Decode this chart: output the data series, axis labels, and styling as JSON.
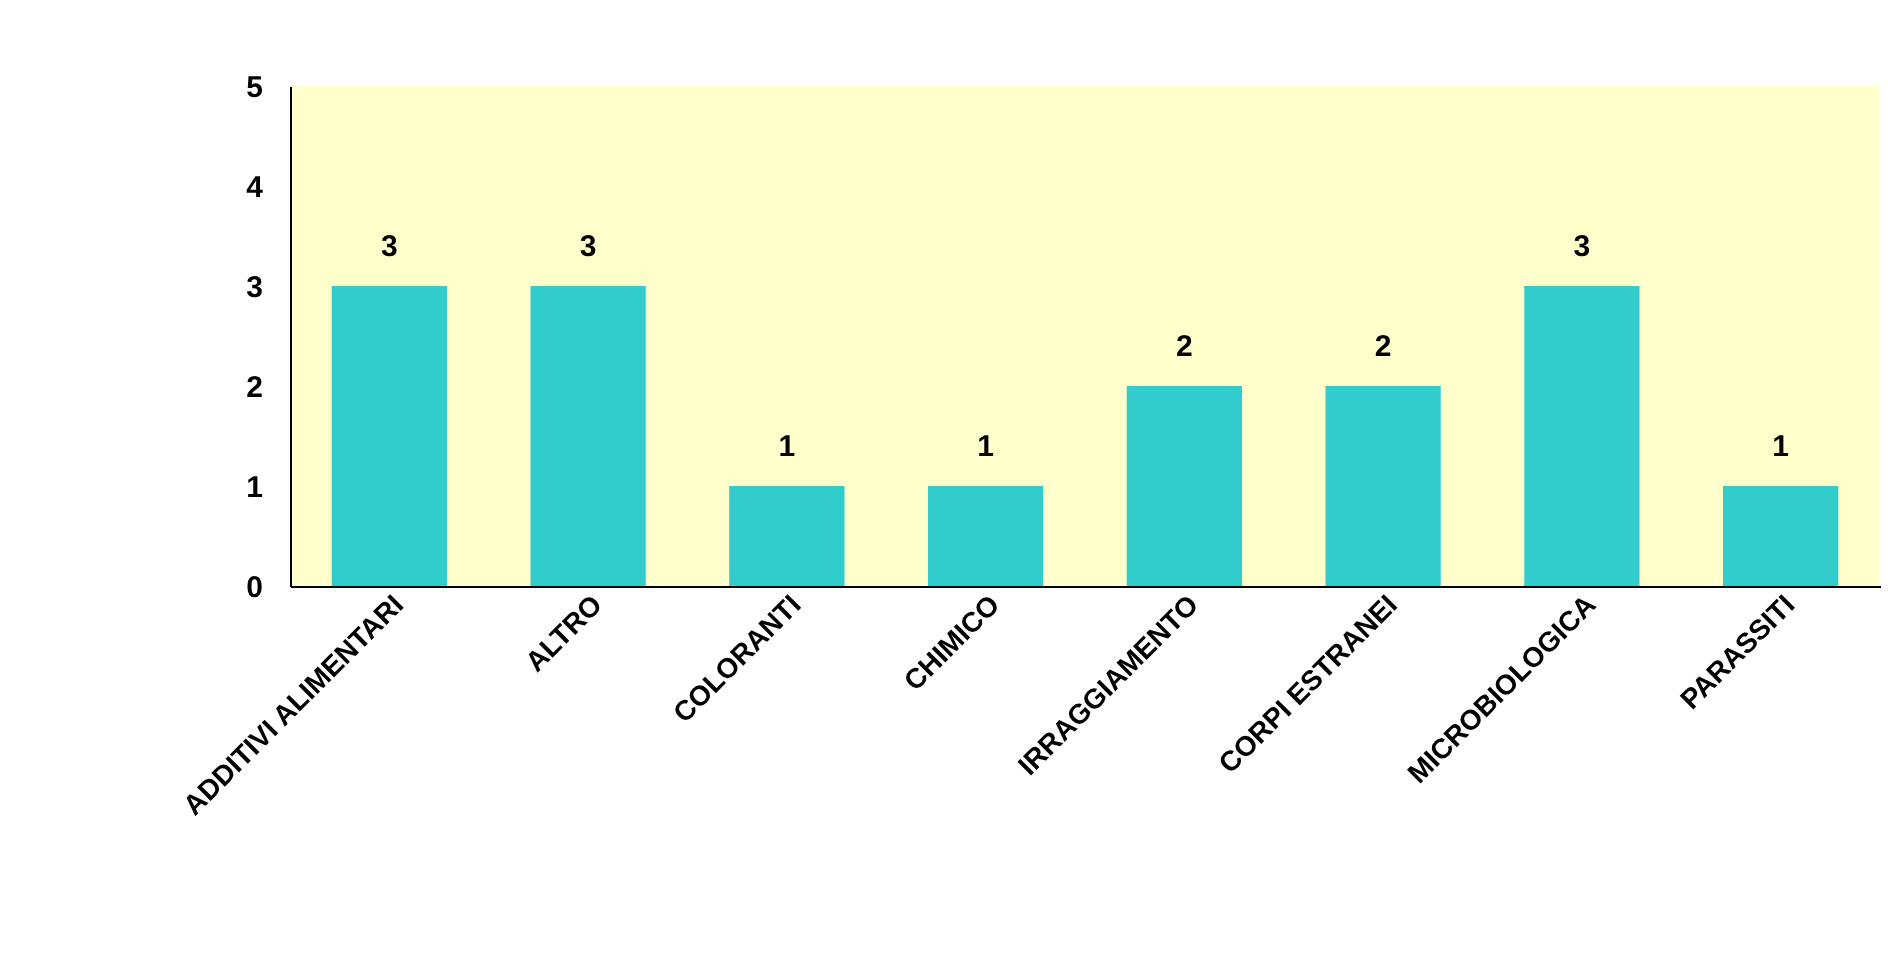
{
  "chart_data": {
    "type": "bar",
    "categories": [
      "ADDITIVI ALIMENTARI",
      "ALTRO",
      "COLORANTI",
      "CHIMICO",
      "IRRAGGIAMENTO",
      "CORPI ESTRANEI",
      "MICROBIOLOGICA",
      "PARASSITI"
    ],
    "values": [
      3,
      3,
      1,
      1,
      2,
      2,
      3,
      1
    ],
    "color": "#33cccc",
    "ylim": [
      0,
      5
    ],
    "yticks": [
      0,
      1,
      2,
      3,
      4,
      5
    ],
    "grid": false,
    "data_labels": true
  }
}
